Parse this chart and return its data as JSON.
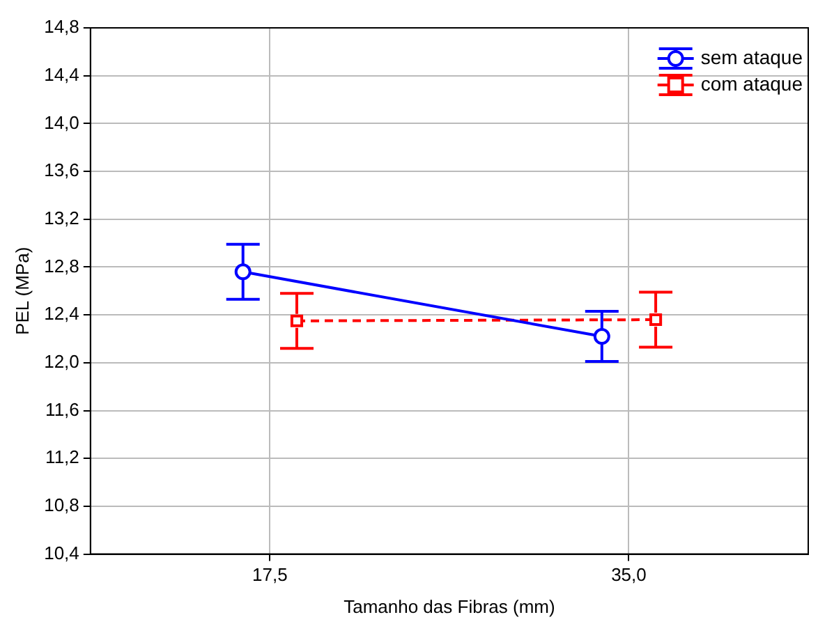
{
  "chart_data": {
    "type": "line",
    "xlabel": "Tamanho das Fibras (mm)",
    "ylabel": "PEL (MPa)",
    "categories": [
      "17,5",
      "35,0"
    ],
    "series": [
      {
        "name": "sem ataque",
        "color": "#0000ff",
        "values": [
          12.76,
          12.22
        ],
        "errors": [
          0.23,
          0.21
        ],
        "marker": "circle",
        "line_style": "solid"
      },
      {
        "name": "com ataque",
        "color": "#ff0000",
        "values": [
          12.35,
          12.36
        ],
        "errors": [
          0.23,
          0.23
        ],
        "marker": "square",
        "line_style": "dashed"
      }
    ],
    "ylim": [
      10.4,
      14.8
    ],
    "yticks": [
      {
        "value": 10.4,
        "label": "10,4"
      },
      {
        "value": 10.8,
        "label": "10,8"
      },
      {
        "value": 11.2,
        "label": "11,2"
      },
      {
        "value": 11.6,
        "label": "11,6"
      },
      {
        "value": 12.0,
        "label": "12,0"
      },
      {
        "value": 12.4,
        "label": "12,4"
      },
      {
        "value": 12.8,
        "label": "12,8"
      },
      {
        "value": 13.2,
        "label": "13,2"
      },
      {
        "value": 13.6,
        "label": "13,6"
      },
      {
        "value": 14.0,
        "label": "14,0"
      },
      {
        "value": 14.4,
        "label": "14,4"
      },
      {
        "value": 14.8,
        "label": "14,8"
      }
    ],
    "grid": true,
    "legend": "top right"
  }
}
